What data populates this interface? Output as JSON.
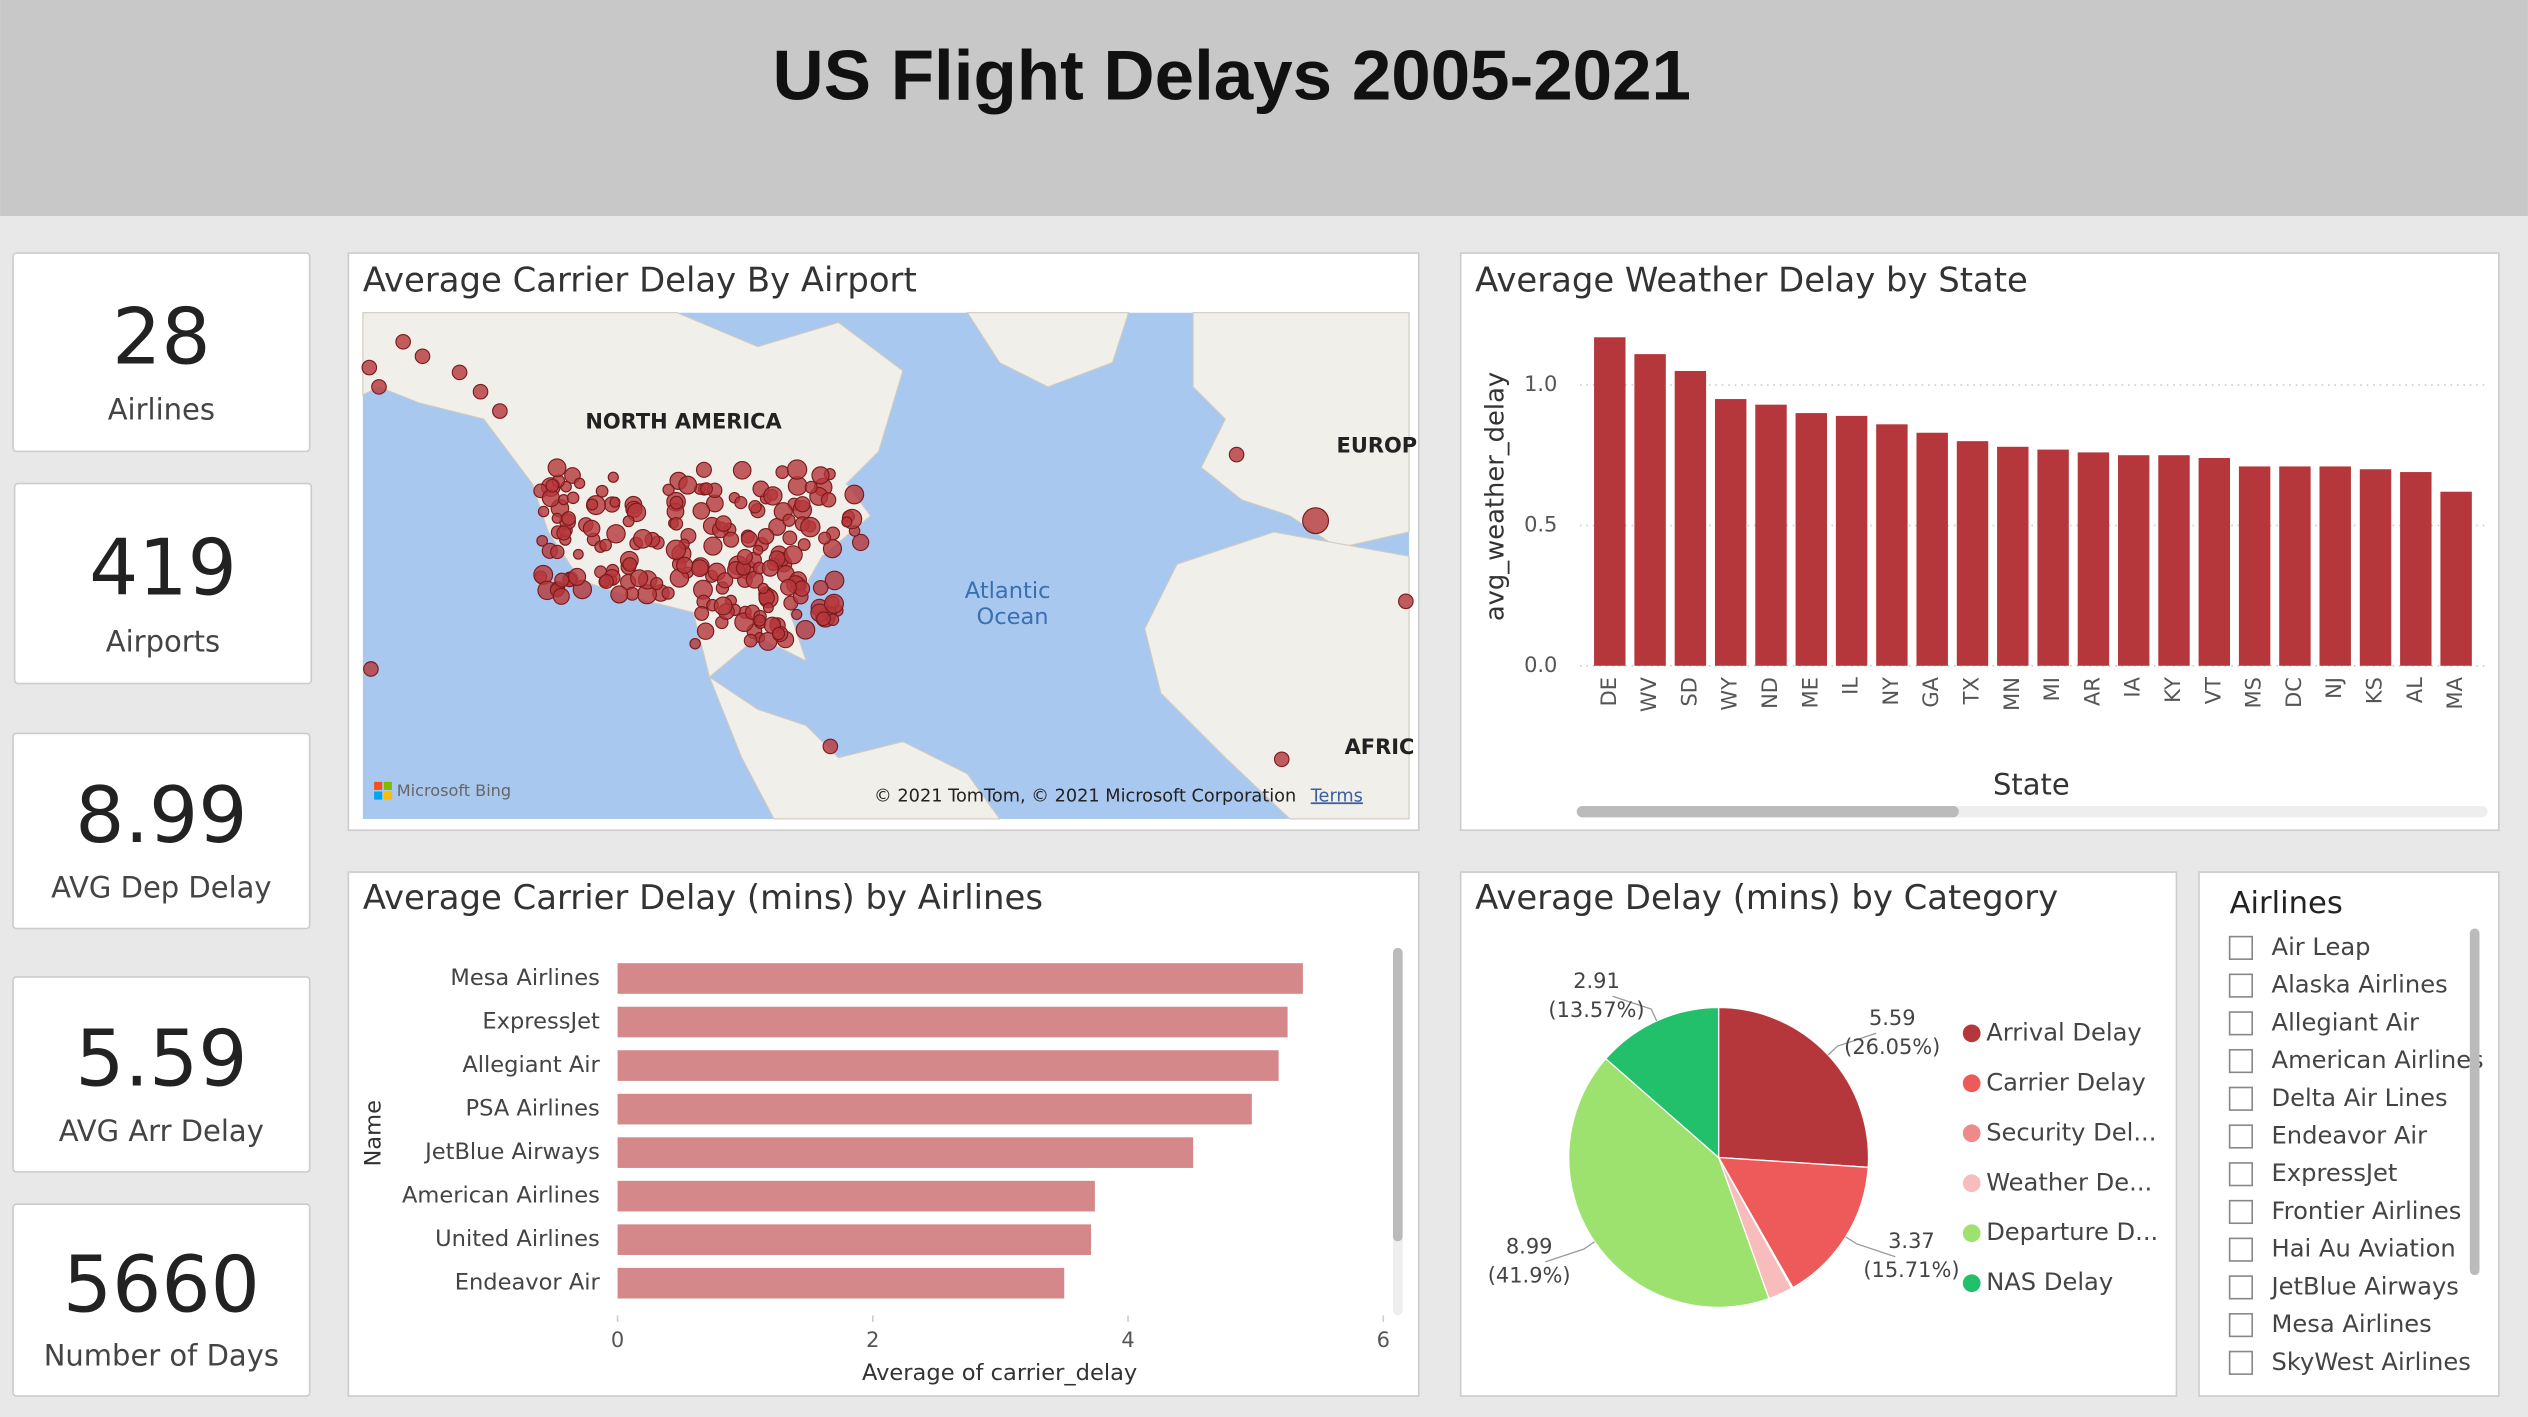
{
  "header": {
    "title": "US Flight Delays 2005-2021"
  },
  "cards": [
    {
      "value": 28,
      "label": "Airlines"
    },
    {
      "value": 419,
      "label": "Airports"
    },
    {
      "value": 8.99,
      "label": "AVG Dep Delay"
    },
    {
      "value": 5.59,
      "label": "AVG Arr Delay"
    },
    {
      "value": 5660,
      "label": "Number of Days"
    }
  ],
  "map": {
    "title": "Average Carrier Delay By Airport",
    "labels": [
      "NORTH AMERICA",
      "EUROP",
      "Atlantic",
      "Ocean",
      "AFRIC"
    ],
    "brand": "Microsoft Bing",
    "copyright": "© 2021 TomTom, © 2021 Microsoft Corporation",
    "terms": "Terms"
  },
  "chart_data": [
    {
      "type": "bar",
      "title": "Average Weather Delay by State",
      "x_label": "State",
      "y_label": "avg_weather_delay",
      "categories": [
        "DE",
        "WV",
        "SD",
        "WY",
        "ND",
        "ME",
        "IL",
        "NY",
        "GA",
        "TX",
        "MN",
        "MI",
        "AR",
        "IA",
        "KY",
        "VT",
        "MS",
        "DC",
        "NJ",
        "KS",
        "AL",
        "MA"
      ],
      "values": [
        1.17,
        1.11,
        1.05,
        0.95,
        0.93,
        0.9,
        0.89,
        0.86,
        0.83,
        0.8,
        0.78,
        0.77,
        0.76,
        0.75,
        0.75,
        0.74,
        0.71,
        0.71,
        0.71,
        0.7,
        0.69,
        0.62
      ],
      "color": "#b5373b",
      "ylim": [
        0,
        1.2
      ],
      "yticks": [
        {
          "value": 0,
          "label": "0.0"
        },
        0.5,
        {
          "value": 1,
          "label": "1.0"
        }
      ],
      "grid": true
    },
    {
      "type": "barh",
      "title": "Average Carrier Delay (mins) by Airlines",
      "x_label": "Average of carrier_delay",
      "y_label": "Name",
      "categories": [
        "Mesa Airlines",
        "ExpressJet",
        "Allegiant Air",
        "PSA Airlines",
        "JetBlue Airways",
        "American Airlines",
        "United Airlines",
        "Endeavor Air"
      ],
      "values": [
        5.37,
        5.25,
        5.18,
        4.97,
        4.51,
        3.74,
        3.71,
        3.5
      ],
      "color": "#d4888a",
      "xlim": [
        0,
        6
      ],
      "xticks": [
        0,
        2,
        4,
        6
      ]
    },
    {
      "type": "pie",
      "title": "Average Delay (mins) by Category",
      "categories": [
        "Arrival Delay",
        "Carrier Delay",
        "Security Del...",
        "Weather De...",
        "Departure D...",
        "NAS Delay"
      ],
      "values": [
        5.59,
        3.37,
        0.03,
        0.57,
        8.99,
        2.91
      ],
      "percent_labels": [
        "(26.05%)",
        "(15.71%)",
        null,
        null,
        "(41.9%)",
        "(13.57%)"
      ],
      "colors": [
        "#b5373b",
        "#ee5a5a",
        "#f08a8a",
        "#f8bcbc",
        "#9de26e",
        "#22c06a"
      ]
    }
  ],
  "slicer": {
    "title": "Airlines",
    "items": [
      "Air Leap",
      "Alaska Airlines",
      "Allegiant Air",
      "American Airlines",
      "Delta Air Lines",
      "Endeavor Air",
      "ExpressJet",
      "Frontier Airlines",
      "Hai Au Aviation",
      "JetBlue Airways",
      "Mesa Airlines",
      "SkyWest Airlines"
    ]
  }
}
